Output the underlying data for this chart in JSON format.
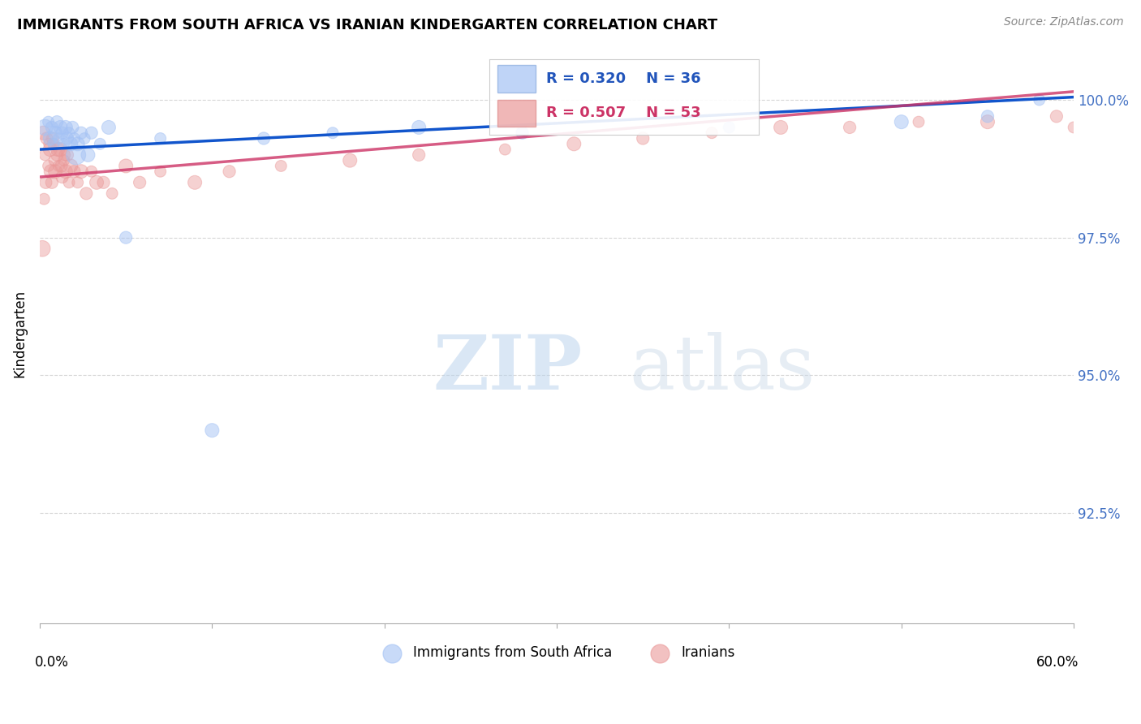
{
  "title": "IMMIGRANTS FROM SOUTH AFRICA VS IRANIAN KINDERGARTEN CORRELATION CHART",
  "source": "Source: ZipAtlas.com",
  "ylabel": "Kindergarten",
  "xlim": [
    0.0,
    60.0
  ],
  "ylim": [
    90.5,
    101.0
  ],
  "y_ticks": [
    92.5,
    95.0,
    97.5,
    100.0
  ],
  "blue_color": "#a4c2f4",
  "pink_color": "#ea9999",
  "blue_line_color": "#1155cc",
  "pink_line_color": "#cc3366",
  "legend_r_blue": "R = 0.320",
  "legend_n_blue": "N = 36",
  "legend_r_pink": "R = 0.507",
  "legend_n_pink": "N = 53",
  "watermark_zip": "ZIP",
  "watermark_atlas": "atlas",
  "blue_x": [
    0.3,
    0.5,
    0.6,
    0.7,
    0.8,
    0.9,
    1.0,
    1.1,
    1.2,
    1.3,
    1.4,
    1.5,
    1.6,
    1.7,
    1.8,
    1.9,
    2.0,
    2.1,
    2.2,
    2.4,
    2.6,
    2.8,
    3.0,
    3.5,
    4.0,
    5.0,
    7.0,
    10.0,
    13.0,
    17.0,
    22.0,
    28.0,
    40.0,
    50.0,
    55.0,
    58.0
  ],
  "blue_y": [
    99.5,
    99.6,
    99.3,
    99.5,
    99.2,
    99.4,
    99.6,
    99.3,
    99.5,
    99.4,
    99.2,
    99.5,
    99.3,
    99.4,
    99.2,
    99.5,
    99.3,
    99.0,
    99.2,
    99.4,
    99.3,
    99.0,
    99.4,
    99.2,
    99.5,
    97.5,
    99.3,
    94.0,
    99.3,
    99.4,
    99.5,
    99.4,
    99.5,
    99.6,
    99.7,
    100.0
  ],
  "blue_sizes": [
    200,
    100,
    150,
    120,
    100,
    150,
    120,
    100,
    150,
    120,
    100,
    150,
    120,
    100,
    150,
    120,
    100,
    300,
    150,
    120,
    100,
    150,
    120,
    100,
    150,
    120,
    100,
    150,
    120,
    100,
    150,
    120,
    100,
    150,
    120,
    100
  ],
  "pink_x": [
    0.2,
    0.3,
    0.4,
    0.5,
    0.6,
    0.7,
    0.8,
    0.9,
    1.0,
    1.1,
    1.2,
    1.3,
    1.4,
    1.5,
    1.6,
    1.7,
    1.8,
    2.0,
    2.2,
    2.4,
    2.7,
    3.0,
    3.3,
    3.7,
    4.2,
    5.0,
    5.8,
    7.0,
    9.0,
    11.0,
    14.0,
    18.0,
    22.0,
    27.0,
    31.0,
    35.0,
    39.0,
    43.0,
    47.0,
    51.0,
    55.0,
    59.0,
    60.0,
    0.15,
    0.25,
    0.35,
    0.55,
    0.65,
    0.75,
    0.85,
    1.05,
    1.25,
    1.45
  ],
  "pink_y": [
    99.4,
    99.0,
    99.3,
    98.8,
    99.1,
    98.5,
    99.2,
    98.7,
    99.0,
    98.8,
    99.1,
    98.6,
    98.9,
    98.7,
    99.0,
    98.5,
    98.8,
    98.7,
    98.5,
    98.7,
    98.3,
    98.7,
    98.5,
    98.5,
    98.3,
    98.8,
    98.5,
    98.7,
    98.5,
    98.7,
    98.8,
    98.9,
    99.0,
    99.1,
    99.2,
    99.3,
    99.4,
    99.5,
    99.5,
    99.6,
    99.6,
    99.7,
    99.5,
    97.3,
    98.2,
    98.5,
    99.2,
    98.7,
    99.3,
    98.9,
    99.1,
    98.8,
    99.0
  ],
  "pink_sizes": [
    150,
    100,
    120,
    100,
    150,
    120,
    100,
    150,
    120,
    100,
    150,
    120,
    100,
    150,
    120,
    100,
    150,
    120,
    100,
    150,
    120,
    100,
    150,
    120,
    100,
    150,
    120,
    100,
    150,
    120,
    100,
    150,
    120,
    100,
    150,
    120,
    100,
    150,
    120,
    100,
    150,
    120,
    100,
    200,
    100,
    120,
    100,
    150,
    120,
    100,
    150,
    120,
    100
  ]
}
